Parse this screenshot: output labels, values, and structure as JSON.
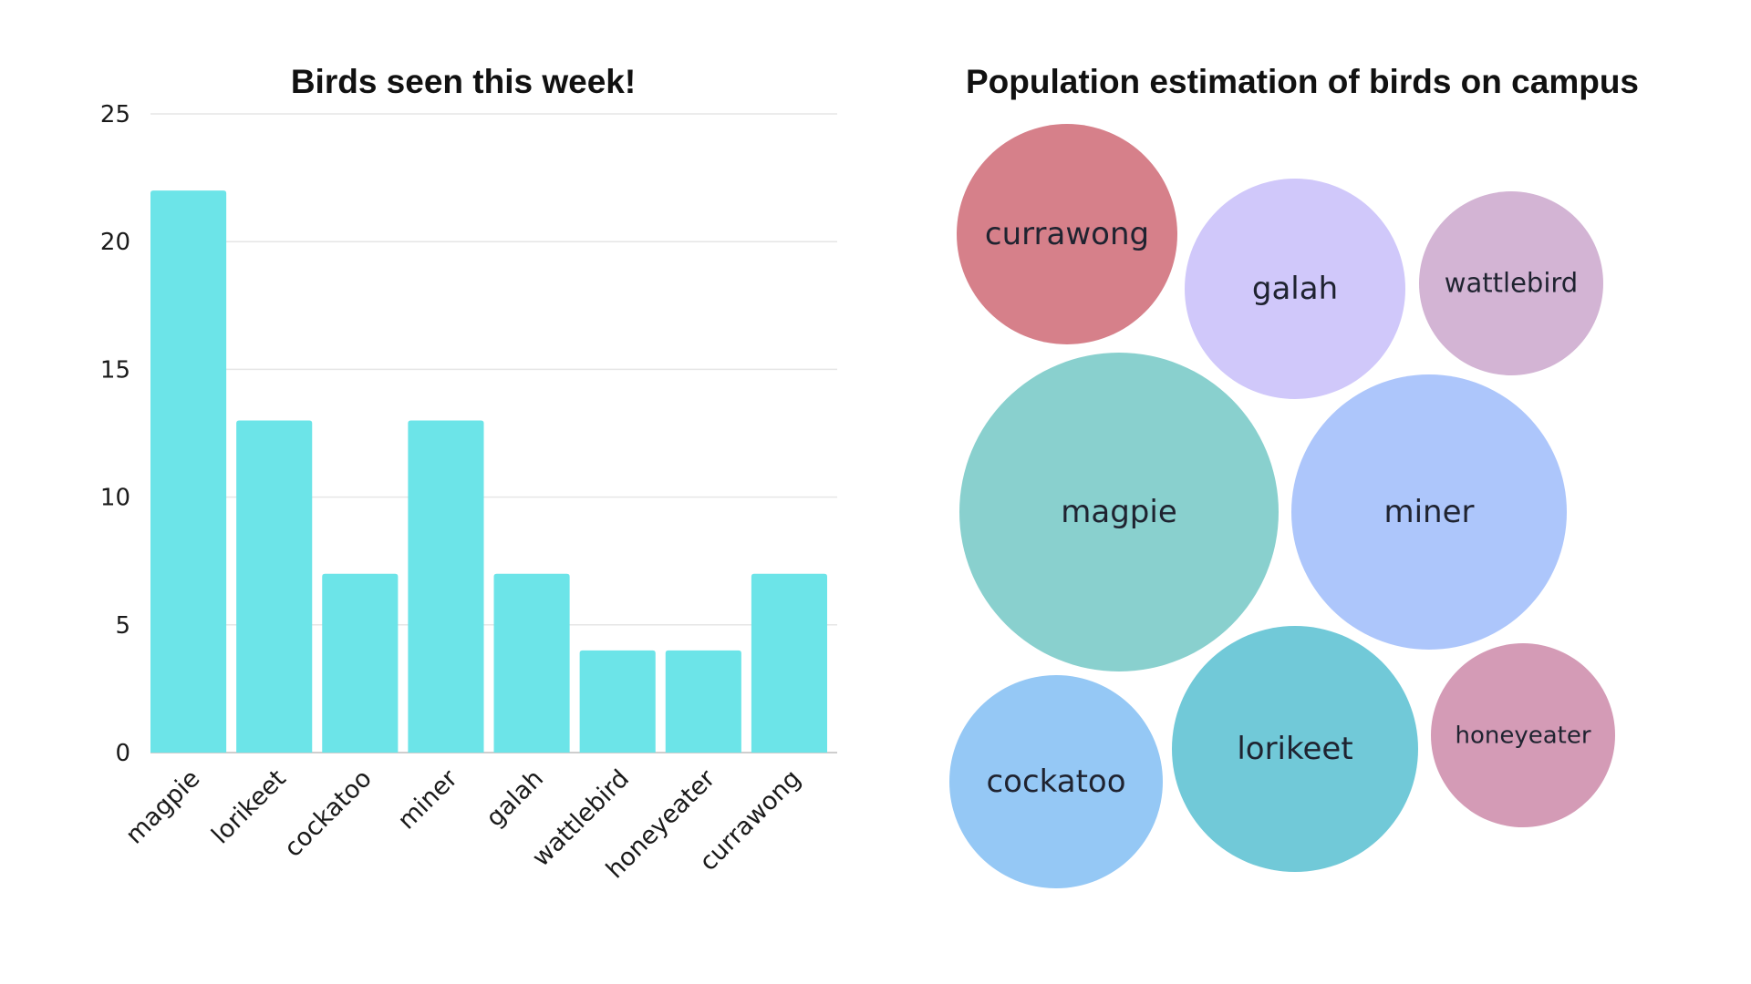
{
  "chart_data": [
    {
      "type": "bar",
      "title": "Birds seen this week!",
      "categories": [
        "magpie",
        "lorikeet",
        "cockatoo",
        "miner",
        "galah",
        "wattlebird",
        "honeyeater",
        "currawong"
      ],
      "values": [
        22,
        13,
        7,
        13,
        7,
        4,
        4,
        7
      ],
      "ylim": [
        0,
        25
      ],
      "yticks": [
        "0",
        "5",
        "10",
        "15",
        "20",
        "25"
      ],
      "grid": true,
      "colors": {
        "bar": "#6ce4e8",
        "grid": "#e6e6e6"
      }
    },
    {
      "type": "bubble",
      "title": "Population estimation of birds on campus",
      "bubbles": [
        {
          "label": "currawong",
          "color": "#d6808a"
        },
        {
          "label": "galah",
          "color": "#d0c8fa"
        },
        {
          "label": "wattlebird",
          "color": "#d3b4d4"
        },
        {
          "label": "magpie",
          "color": "#89d0ce"
        },
        {
          "label": "miner",
          "color": "#adc6fb"
        },
        {
          "label": "cockatoo",
          "color": "#95c8f5"
        },
        {
          "label": "lorikeet",
          "color": "#71c9d8"
        },
        {
          "label": "honeyeater",
          "color": "#d49bb6"
        }
      ]
    }
  ]
}
